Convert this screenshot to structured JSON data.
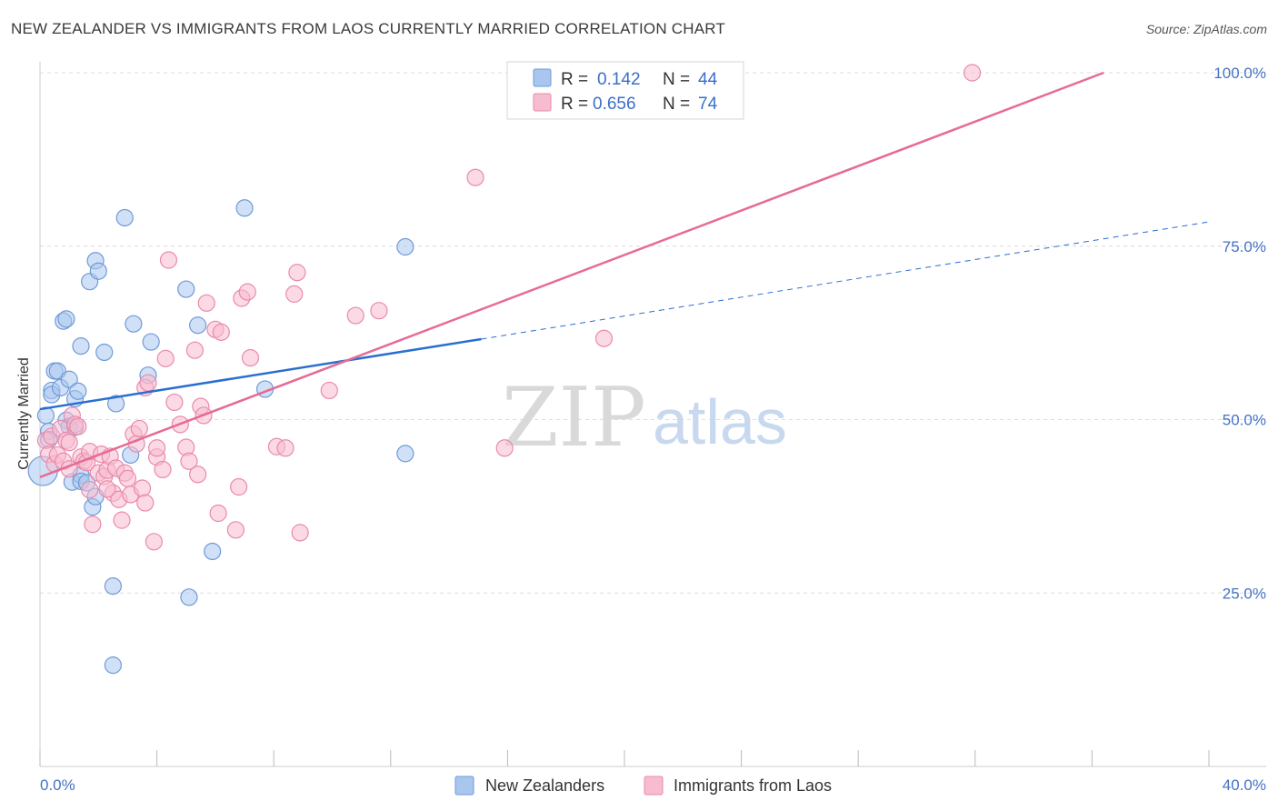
{
  "title": "NEW ZEALANDER VS IMMIGRANTS FROM LAOS CURRENTLY MARRIED CORRELATION CHART",
  "source": "Source: ZipAtlas.com",
  "watermark": {
    "zip": "ZIP",
    "atlas": "atlas"
  },
  "colors": {
    "blue_fill": "#a9c6ee",
    "blue_stroke": "#6f9bd8",
    "blue_line": "#2a6fd0",
    "pink_fill": "#f7bcd0",
    "pink_stroke": "#ea8aa9",
    "pink_line": "#e66b95",
    "grid": "#dcdcdc",
    "axis_label": "#4472c4"
  },
  "legend": {
    "r_label": "R =",
    "n_label": "N =",
    "series": [
      {
        "r": "0.142",
        "n": "44"
      },
      {
        "r": "0.656",
        "n": "74"
      }
    ]
  },
  "chart_data": {
    "type": "scatter",
    "title": "NEW ZEALANDER VS IMMIGRANTS FROM LAOS CURRENTLY MARRIED CORRELATION CHART",
    "xlabel": "",
    "ylabel": "Currently Married",
    "xlim": [
      0,
      40
    ],
    "ylim": [
      0,
      102
    ],
    "x_tick_labels": [
      "0.0%",
      "40.0%"
    ],
    "y_ticks": [
      25,
      50,
      75,
      100
    ],
    "y_tick_labels": [
      "25.0%",
      "50.0%",
      "75.0%",
      "100.0%"
    ],
    "grid": true,
    "legend_position": "top-center",
    "series": [
      {
        "name": "New Zealanders",
        "r": 0.142,
        "n": 44,
        "trend": {
          "x0": 0,
          "y0": 51.5,
          "x1": 15.1,
          "y1": 61.6,
          "dash_x1": 40,
          "dash_y1": 78.5
        },
        "points": [
          [
            0.1,
            42.6
          ],
          [
            0.2,
            50.6
          ],
          [
            0.3,
            48.3
          ],
          [
            0.4,
            54.2
          ],
          [
            0.4,
            53.6
          ],
          [
            0.5,
            57.0
          ],
          [
            0.6,
            57.0
          ],
          [
            0.7,
            54.6
          ],
          [
            0.8,
            64.2
          ],
          [
            0.9,
            64.5
          ],
          [
            0.9,
            49.9
          ],
          [
            1.0,
            49.0
          ],
          [
            1.0,
            55.8
          ],
          [
            1.1,
            41.0
          ],
          [
            1.2,
            53.0
          ],
          [
            1.3,
            54.1
          ],
          [
            1.4,
            42.0
          ],
          [
            1.4,
            41.1
          ],
          [
            1.4,
            60.6
          ],
          [
            1.6,
            40.9
          ],
          [
            1.7,
            69.9
          ],
          [
            1.8,
            37.4
          ],
          [
            1.9,
            72.9
          ],
          [
            1.9,
            38.9
          ],
          [
            2.0,
            71.4
          ],
          [
            2.2,
            59.7
          ],
          [
            2.5,
            26.0
          ],
          [
            2.5,
            14.6
          ],
          [
            2.6,
            52.3
          ],
          [
            2.9,
            79.1
          ],
          [
            3.1,
            44.9
          ],
          [
            3.2,
            63.8
          ],
          [
            3.7,
            56.4
          ],
          [
            3.8,
            61.2
          ],
          [
            5.0,
            68.8
          ],
          [
            5.1,
            24.4
          ],
          [
            5.4,
            63.6
          ],
          [
            5.9,
            31.0
          ],
          [
            7.0,
            80.5
          ],
          [
            7.7,
            54.4
          ],
          [
            12.5,
            74.9
          ],
          [
            12.5,
            45.1
          ],
          [
            0.3,
            47.1
          ],
          [
            1.2,
            48.9
          ]
        ]
      },
      {
        "name": "Immigrants from Laos",
        "r": 0.656,
        "n": 74,
        "trend": {
          "x0": 0,
          "y0": 41.7,
          "x1": 36.4,
          "y1": 100.0
        },
        "points": [
          [
            0.2,
            47.0
          ],
          [
            0.3,
            45.0
          ],
          [
            0.4,
            47.6
          ],
          [
            0.5,
            43.6
          ],
          [
            0.6,
            44.9
          ],
          [
            0.7,
            48.7
          ],
          [
            0.8,
            44.0
          ],
          [
            0.9,
            47.0
          ],
          [
            1.0,
            46.7
          ],
          [
            1.0,
            42.9
          ],
          [
            1.1,
            50.6
          ],
          [
            1.2,
            49.3
          ],
          [
            1.4,
            44.6
          ],
          [
            1.5,
            44.0
          ],
          [
            1.6,
            43.8
          ],
          [
            1.7,
            39.9
          ],
          [
            1.7,
            45.4
          ],
          [
            1.8,
            34.9
          ],
          [
            2.0,
            42.3
          ],
          [
            2.1,
            45.0
          ],
          [
            2.2,
            41.8
          ],
          [
            2.3,
            42.7
          ],
          [
            2.4,
            44.7
          ],
          [
            2.5,
            39.4
          ],
          [
            2.6,
            43.0
          ],
          [
            2.7,
            38.5
          ],
          [
            2.8,
            35.5
          ],
          [
            2.9,
            42.3
          ],
          [
            3.0,
            41.5
          ],
          [
            3.1,
            39.2
          ],
          [
            3.2,
            47.9
          ],
          [
            3.3,
            46.5
          ],
          [
            3.4,
            48.7
          ],
          [
            3.5,
            40.1
          ],
          [
            3.6,
            38.0
          ],
          [
            3.6,
            54.6
          ],
          [
            3.7,
            55.3
          ],
          [
            3.9,
            32.4
          ],
          [
            4.0,
            44.6
          ],
          [
            4.0,
            45.9
          ],
          [
            4.2,
            42.8
          ],
          [
            4.3,
            58.8
          ],
          [
            4.4,
            73.0
          ],
          [
            4.6,
            52.5
          ],
          [
            4.8,
            49.3
          ],
          [
            5.0,
            46.0
          ],
          [
            5.1,
            44.0
          ],
          [
            5.3,
            60.0
          ],
          [
            5.4,
            42.1
          ],
          [
            5.5,
            51.9
          ],
          [
            5.6,
            50.6
          ],
          [
            5.7,
            66.8
          ],
          [
            6.0,
            63.0
          ],
          [
            6.1,
            36.5
          ],
          [
            6.2,
            62.6
          ],
          [
            6.7,
            34.1
          ],
          [
            6.8,
            40.3
          ],
          [
            6.9,
            67.5
          ],
          [
            7.1,
            68.4
          ],
          [
            7.2,
            58.9
          ],
          [
            8.1,
            46.1
          ],
          [
            8.4,
            45.9
          ],
          [
            8.7,
            68.1
          ],
          [
            8.8,
            71.2
          ],
          [
            8.9,
            33.7
          ],
          [
            9.9,
            54.2
          ],
          [
            10.8,
            65.0
          ],
          [
            11.6,
            65.7
          ],
          [
            14.9,
            84.9
          ],
          [
            15.9,
            45.9
          ],
          [
            19.3,
            61.7
          ],
          [
            31.9,
            100.0
          ],
          [
            1.3,
            49.0
          ],
          [
            2.3,
            40.0
          ]
        ]
      }
    ]
  }
}
